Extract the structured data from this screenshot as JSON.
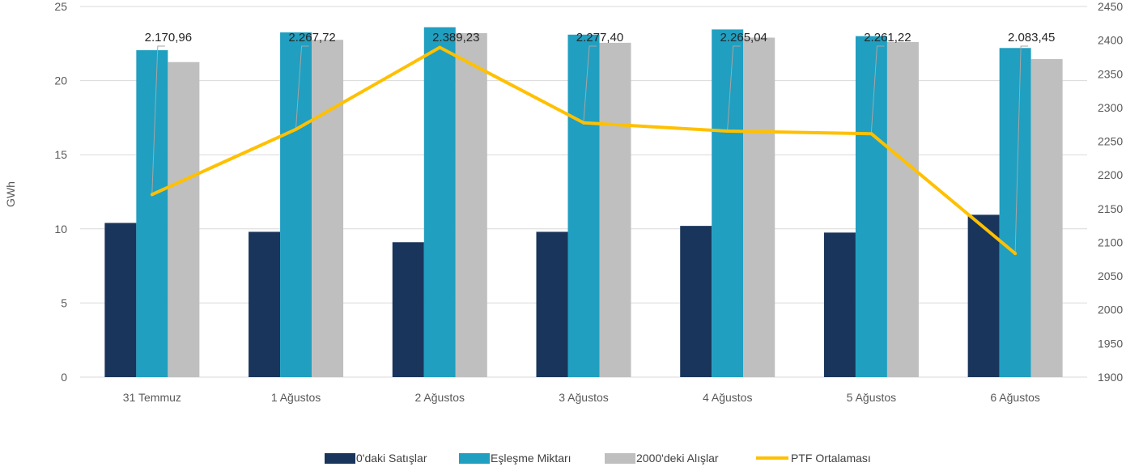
{
  "chart_data": {
    "type": "bar",
    "categories": [
      "31 Temmuz",
      "1 Ağustos",
      "2 Ağustos",
      "3 Ağustos",
      "4 Ağustos",
      "5 Ağustos",
      "6 Ağustos"
    ],
    "ylabel": "GWh",
    "ylim": [
      0,
      25
    ],
    "yticks": [
      0,
      5,
      10,
      15,
      20,
      25
    ],
    "y2lim": [
      1900,
      2450
    ],
    "y2ticks": [
      1900,
      1950,
      2000,
      2050,
      2100,
      2150,
      2200,
      2250,
      2300,
      2350,
      2400,
      2450
    ],
    "grid": true,
    "legend_position": "bottom",
    "series": [
      {
        "name": "0'daki Satışlar",
        "type": "bar",
        "axis": "left",
        "color": "#1a355b",
        "values": [
          10.4,
          9.8,
          9.1,
          9.8,
          10.2,
          9.75,
          10.95
        ]
      },
      {
        "name": "Eşleşme Miktarı",
        "type": "bar",
        "axis": "left",
        "color": "#209fc0",
        "values": [
          22.05,
          23.25,
          23.6,
          23.1,
          23.45,
          23.0,
          22.2
        ]
      },
      {
        "name": "2000'deki Alışlar",
        "type": "bar",
        "axis": "left",
        "color": "#bfbfbf",
        "values": [
          21.25,
          22.75,
          23.2,
          22.55,
          22.9,
          22.6,
          21.45
        ]
      },
      {
        "name": "PTF Ortalaması",
        "type": "line",
        "axis": "right",
        "color": "#ffc000",
        "values": [
          2170.96,
          2267.72,
          2389.23,
          2277.4,
          2265.04,
          2261.22,
          2083.45
        ],
        "labels": [
          "2.170,96",
          "2.267,72",
          "2.389,23",
          "2.277,40",
          "2.265,04",
          "2.261,22",
          "2.083,45"
        ]
      }
    ]
  }
}
